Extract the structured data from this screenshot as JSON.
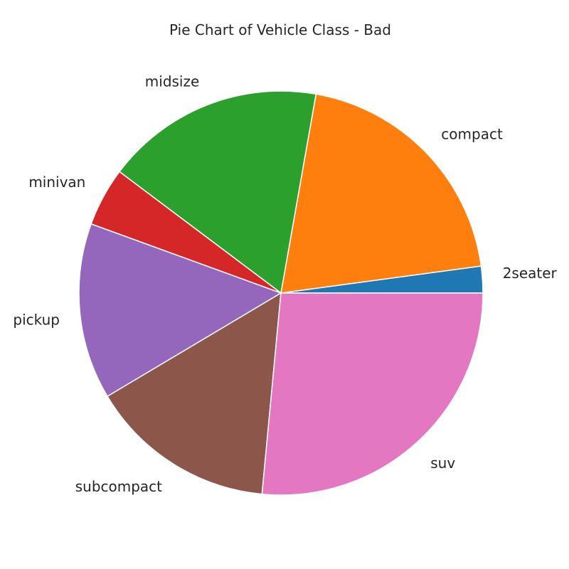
{
  "chart_data": {
    "type": "pie",
    "title": "Pie Chart of Vehicle Class - Bad",
    "categories": [
      "2seater",
      "compact",
      "midsize",
      "minivan",
      "pickup",
      "subcompact",
      "suv"
    ],
    "values": [
      5,
      47,
      41,
      11,
      33,
      35,
      62
    ],
    "colors": [
      "#1f77b4",
      "#ff7f0e",
      "#2ca02c",
      "#d62728",
      "#9467bd",
      "#8c564b",
      "#e377c2"
    ],
    "start_angle_deg": 0,
    "direction": "counterclockwise",
    "legend": "none"
  }
}
